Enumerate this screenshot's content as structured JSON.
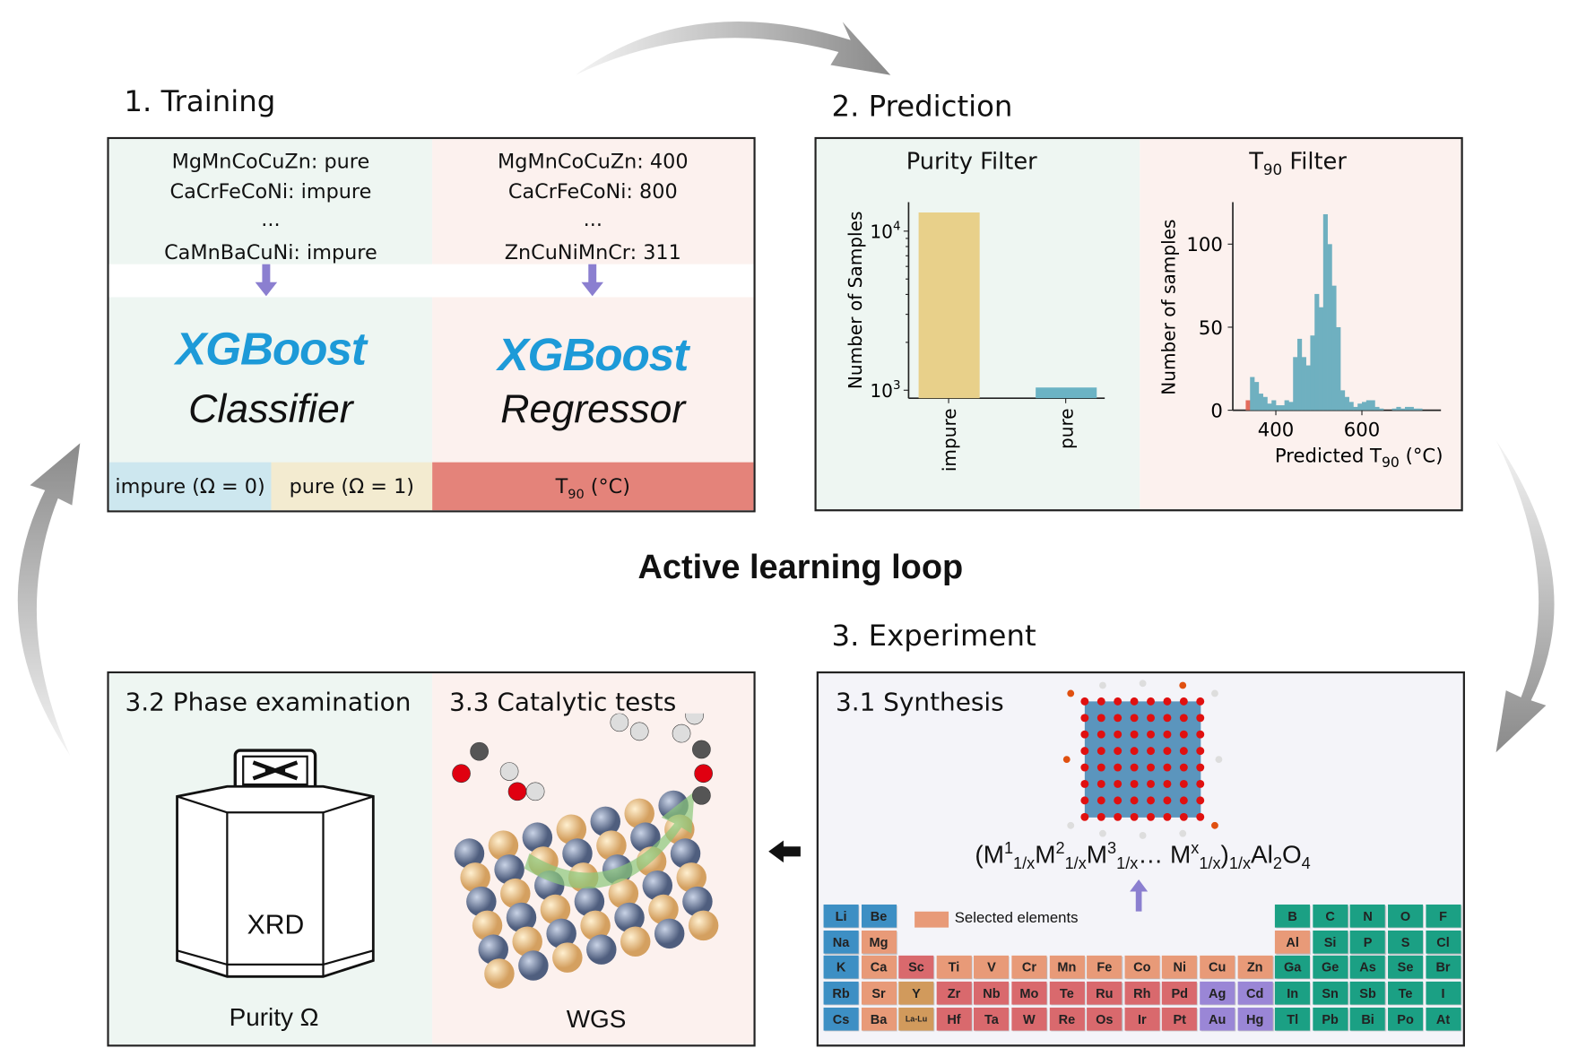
{
  "title": "Active learning loop",
  "colors": {
    "xgboost": "#1d9ad8",
    "impure_bar": "#e8d08a",
    "pure_bar": "#6bb3c4",
    "hist": "#6fb0c0",
    "hist_low": "#e36b5c",
    "t90_label": "#e4837a",
    "impure_label": "#cde7ef",
    "pure_label": "#f3ebd0",
    "arrow": "#8b7fd0"
  },
  "training": {
    "heading": "1. Training",
    "classifier_lines": [
      "MgMnCoCuZn: pure",
      "CaCrFeCoNi: impure",
      "...",
      "CaMnBaCuNi: impure"
    ],
    "regressor_lines": [
      "MgMnCoCuZn: 400",
      "CaCrFeCoNi: 800",
      "...",
      "ZnCuNiMnCr: 311"
    ],
    "classifier_logo": "XGBoost",
    "classifier_name": "Classifier",
    "regressor_logo": "XGBoost",
    "regressor_name": "Regressor",
    "labels": {
      "impure": "impure (Ω = 0)",
      "pure": "pure (Ω = 1)",
      "t90_main": "T",
      "t90_sub": "90",
      "t90_unit": " (°C)"
    }
  },
  "prediction": {
    "heading": "2. Prediction",
    "purity_title": "Purity Filter",
    "t90_title_main": "T",
    "t90_title_sub": "90",
    "t90_title_rest": " Filter"
  },
  "chart_data": [
    {
      "type": "bar",
      "title": "Purity Filter",
      "ylabel": "Number of Samples",
      "yscale": "log",
      "categories": [
        "impure",
        "pure"
      ],
      "values": [
        13100,
        1040
      ],
      "yticks": [
        {
          "value": 1000,
          "base": "10",
          "exp": "3"
        },
        {
          "value": 10000,
          "base": "10",
          "exp": "4"
        }
      ],
      "colors": [
        "#e8d08a",
        "#6bb3c4"
      ]
    },
    {
      "type": "bar",
      "title": "T90 Filter",
      "ylabel": "Number of samples",
      "xlabel_main": "Predicted T",
      "xlabel_sub": "90",
      "xlabel_unit": " (°C)",
      "xticks": [
        400,
        600
      ],
      "yticks": [
        0,
        50,
        100
      ],
      "xlim": [
        310,
        800
      ],
      "ylim": [
        0,
        125
      ],
      "bin_width": 10,
      "bins": [
        330,
        340,
        350,
        360,
        370,
        380,
        390,
        400,
        410,
        420,
        430,
        440,
        450,
        460,
        470,
        480,
        490,
        500,
        510,
        520,
        530,
        540,
        550,
        560,
        570,
        580,
        590,
        600,
        610,
        620,
        630,
        640,
        650,
        660,
        670,
        680,
        690,
        700,
        710,
        720,
        730,
        740
      ],
      "counts": [
        6,
        20,
        17,
        10,
        8,
        4,
        6,
        3,
        3,
        6,
        5,
        32,
        43,
        32,
        27,
        45,
        70,
        62,
        118,
        100,
        75,
        50,
        12,
        8,
        5,
        2,
        4,
        5,
        6,
        6,
        2,
        1,
        0,
        0,
        1,
        2,
        1,
        2,
        2,
        1,
        1,
        0
      ],
      "highlight_below": 340
    }
  ],
  "experiment": {
    "heading": "3. Experiment",
    "phase_title": "3.2 Phase examination",
    "catalytic_title": "3.3 Catalytic tests",
    "synthesis_title": "3.1 Synthesis",
    "xrd_label": "XRD",
    "purity_label": "Purity Ω",
    "wgs_label": "WGS",
    "formula": [
      [
        "(M",
        ""
      ],
      [
        "1",
        "sup"
      ],
      [
        "1/x",
        "sub"
      ],
      [
        "M",
        ""
      ],
      [
        "2",
        "sup"
      ],
      [
        "1/x",
        "sub"
      ],
      [
        "M",
        ""
      ],
      [
        "3",
        "sup"
      ],
      [
        "1/x",
        "sub"
      ],
      [
        "… M",
        ""
      ],
      [
        "x",
        "sup"
      ],
      [
        "1/x",
        "sub"
      ],
      [
        ")",
        ""
      ],
      [
        "1/x",
        "sub"
      ],
      [
        "Al",
        ""
      ],
      [
        "2",
        "sub"
      ],
      [
        "O",
        ""
      ],
      [
        "4",
        "sub"
      ]
    ],
    "legend_selected": "Selected elements",
    "periodic_table": [
      [
        "Li",
        "alkali",
        0,
        0
      ],
      [
        "Be",
        "alkali",
        0,
        1
      ],
      [
        "B",
        "main",
        0,
        12
      ],
      [
        "C",
        "main",
        0,
        13
      ],
      [
        "N",
        "main",
        0,
        14
      ],
      [
        "O",
        "main",
        0,
        15
      ],
      [
        "F",
        "main",
        0,
        16
      ],
      [
        "Na",
        "alkali",
        1,
        0
      ],
      [
        "Mg",
        "selected",
        1,
        1
      ],
      [
        "Al",
        "selected",
        1,
        12
      ],
      [
        "Si",
        "main",
        1,
        13
      ],
      [
        "P",
        "main",
        1,
        14
      ],
      [
        "S",
        "main",
        1,
        15
      ],
      [
        "Cl",
        "main",
        1,
        16
      ],
      [
        "K",
        "alkali",
        2,
        0
      ],
      [
        "Ca",
        "selected",
        2,
        1
      ],
      [
        "Sc",
        "transition",
        2,
        2
      ],
      [
        "Ti",
        "selected",
        2,
        3
      ],
      [
        "V",
        "selected",
        2,
        4
      ],
      [
        "Cr",
        "selected",
        2,
        5
      ],
      [
        "Mn",
        "selected",
        2,
        6
      ],
      [
        "Fe",
        "selected",
        2,
        7
      ],
      [
        "Co",
        "selected",
        2,
        8
      ],
      [
        "Ni",
        "selected",
        2,
        9
      ],
      [
        "Cu",
        "selected",
        2,
        10
      ],
      [
        "Zn",
        "selected",
        2,
        11
      ],
      [
        "Ga",
        "main",
        2,
        12
      ],
      [
        "Ge",
        "main",
        2,
        13
      ],
      [
        "As",
        "main",
        2,
        14
      ],
      [
        "Se",
        "main",
        2,
        15
      ],
      [
        "Br",
        "main",
        2,
        16
      ],
      [
        "Rb",
        "alkali",
        3,
        0
      ],
      [
        "Sr",
        "selected",
        3,
        1
      ],
      [
        "Y",
        "rare",
        3,
        2
      ],
      [
        "Zr",
        "transition",
        3,
        3
      ],
      [
        "Nb",
        "transition",
        3,
        4
      ],
      [
        "Mo",
        "transition",
        3,
        5
      ],
      [
        "Te",
        "transition",
        3,
        6
      ],
      [
        "Ru",
        "transition",
        3,
        7
      ],
      [
        "Rh",
        "transition",
        3,
        8
      ],
      [
        "Pd",
        "transition",
        3,
        9
      ],
      [
        "Ag",
        "noble",
        3,
        10
      ],
      [
        "Cd",
        "noble",
        3,
        11
      ],
      [
        "In",
        "main",
        3,
        12
      ],
      [
        "Sn",
        "main",
        3,
        13
      ],
      [
        "Sb",
        "main",
        3,
        14
      ],
      [
        "Te",
        "main",
        3,
        15
      ],
      [
        "I",
        "main",
        3,
        16
      ],
      [
        "Cs",
        "alkali",
        4,
        0
      ],
      [
        "Ba",
        "selected",
        4,
        1
      ],
      [
        "La-Lu",
        "rare",
        4,
        2
      ],
      [
        "Hf",
        "transition",
        4,
        3
      ],
      [
        "Ta",
        "transition",
        4,
        4
      ],
      [
        "W",
        "transition",
        4,
        5
      ],
      [
        "Re",
        "transition",
        4,
        6
      ],
      [
        "Os",
        "transition",
        4,
        7
      ],
      [
        "Ir",
        "transition",
        4,
        8
      ],
      [
        "Pt",
        "transition",
        4,
        9
      ],
      [
        "Au",
        "noble",
        4,
        10
      ],
      [
        "Hg",
        "noble",
        4,
        11
      ],
      [
        "Tl",
        "main",
        4,
        12
      ],
      [
        "Pb",
        "main",
        4,
        13
      ],
      [
        "Bi",
        "main",
        4,
        14
      ],
      [
        "Po",
        "main",
        4,
        15
      ],
      [
        "At",
        "main",
        4,
        16
      ]
    ],
    "element_colors": {
      "alkali": "#3d8fc4",
      "selected": "#e89a78",
      "transition": "#d9696d",
      "rare": "#d19a5c",
      "noble": "#9a86d6",
      "main": "#1ba084"
    }
  }
}
